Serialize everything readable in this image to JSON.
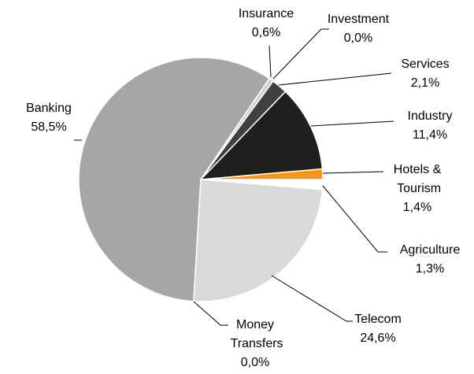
{
  "chart_data": {
    "type": "pie",
    "categories": [
      "Hotels & Tourism",
      "Agriculture",
      "Telecom",
      "Money Transfers",
      "Banking",
      "Insurance",
      "Investment",
      "Services",
      "Industry"
    ],
    "values": [
      1.4,
      1.3,
      24.6,
      0.0,
      58.5,
      0.6,
      0.0,
      2.1,
      11.4
    ],
    "value_labels": [
      "1,4%",
      "1,3%",
      "24,6%",
      "0,0%",
      "58,5%",
      "0,6%",
      "0,0%",
      "2,1%",
      "11,4%"
    ],
    "colors": [
      "#f7941d",
      "#ffffff",
      "#d9d9d9",
      "#bfbfbf",
      "#a6a6a6",
      "#cfcfcf",
      "#7f7f7f",
      "#404040",
      "#1f1f1f"
    ]
  }
}
